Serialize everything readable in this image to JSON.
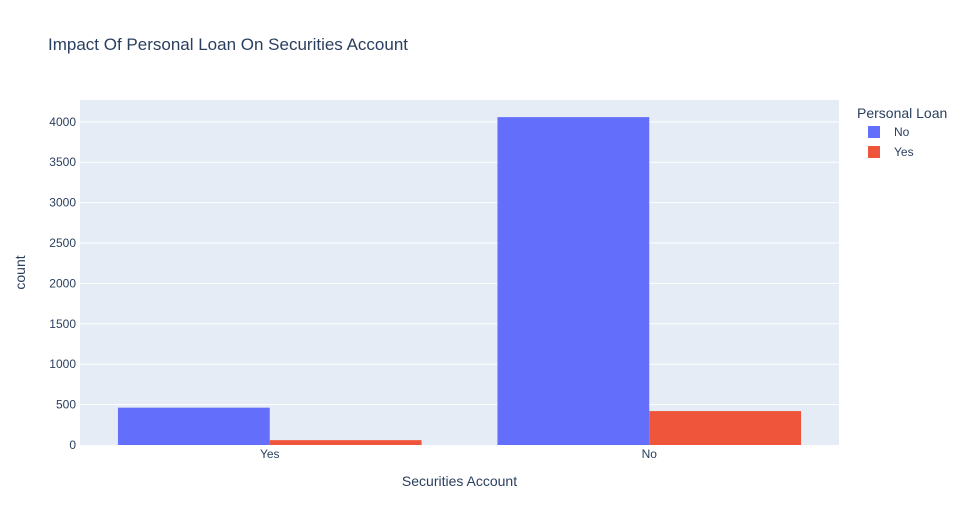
{
  "chart_data": {
    "type": "bar",
    "title": "Impact Of Personal Loan On Securities Account",
    "xlabel": "Securities Account",
    "ylabel": "count",
    "categories": [
      "Yes",
      "No"
    ],
    "series": [
      {
        "name": "No",
        "values": [
          462,
          4058
        ],
        "color": "#636efa"
      },
      {
        "name": "Yes",
        "values": [
          60,
          420
        ],
        "color": "#ef553b"
      }
    ],
    "ylim": [
      0,
      4270
    ],
    "yticks": [
      0,
      500,
      1000,
      1500,
      2000,
      2500,
      3000,
      3500,
      4000
    ],
    "grid": true,
    "legend": {
      "title": "Personal Loan",
      "position": "top-right"
    },
    "plot_background": "#e5ecf6"
  }
}
